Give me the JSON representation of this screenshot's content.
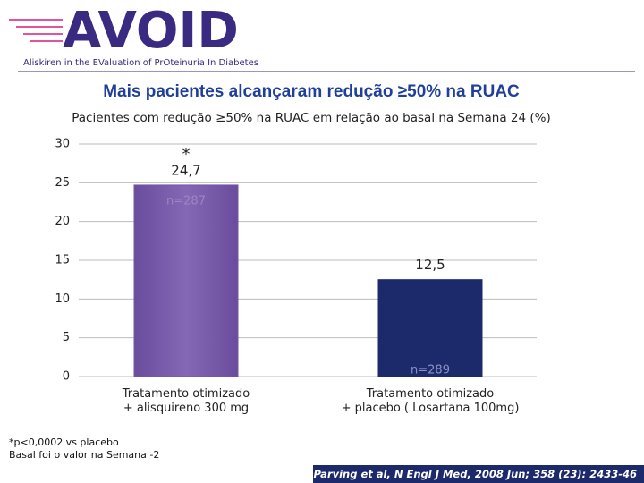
{
  "header": {
    "logo": "AVOID",
    "tagline": "Aliskiren in the EValuation of PrOteinuria In Diabetes"
  },
  "chart_data": {
    "type": "bar",
    "title": "Mais pacientes alcançaram redução ≥50% na RUAC",
    "subtitle": "Pacientes com redução ≥50% na RUAC em relação ao basal na Semana 24 (%)",
    "categories": [
      "Tratamento otimizado\n+ alisquireno 300 mg",
      "Tratamento otimizado\n+ placebo ( Losartana 100mg)"
    ],
    "values": [
      24.7,
      12.5
    ],
    "value_labels": [
      "24,7",
      "12,5"
    ],
    "colors": [
      "#7356a6",
      "#1c2a6b"
    ],
    "sample_sizes": [
      "n=287",
      "n=289"
    ],
    "significance": "*",
    "ylim": [
      0,
      30
    ],
    "yticks": [
      0,
      5,
      10,
      15,
      20,
      25,
      30
    ],
    "grid": true
  },
  "footnotes": [
    "*p<0,0002 vs placebo",
    "Basal foi o valor na Semana -2"
  ],
  "citation": "Parving et al, N Engl J Med, 2008 Jun; 358 (23): 2433-46"
}
